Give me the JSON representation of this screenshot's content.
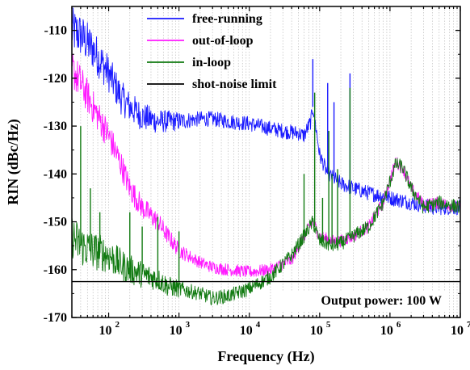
{
  "chart_data": {
    "type": "line",
    "xlabel": "Frequency (Hz)",
    "ylabel": "RIN (dBc/Hz)",
    "xscale": "log",
    "xlim": [
      30,
      10000000
    ],
    "ylim": [
      -170,
      -105
    ],
    "x_ticks": [
      {
        "base": "10",
        "exp": "2",
        "value": 100
      },
      {
        "base": "10",
        "exp": "3",
        "value": 1000
      },
      {
        "base": "10",
        "exp": "4",
        "value": 10000
      },
      {
        "base": "10",
        "exp": "5",
        "value": 100000
      },
      {
        "base": "10",
        "exp": "6",
        "value": 1000000
      },
      {
        "base": "10",
        "exp": "7",
        "value": 10000000
      }
    ],
    "y_ticks": [
      "-110",
      "-120",
      "-130",
      "-140",
      "-150",
      "-160",
      "-170"
    ],
    "grid": "vertical minor dotted",
    "legend_position": "top-center",
    "annotation": "Output power: 100 W",
    "series": [
      {
        "name": "free-running",
        "color": "#1a1aff",
        "x": [
          30,
          40,
          60,
          100,
          150,
          200,
          300,
          500,
          700,
          1000,
          2000,
          3000,
          5000,
          10000,
          20000,
          30000,
          50000,
          60000,
          75000,
          80000,
          90000,
          100000,
          130000,
          200000,
          300000,
          500000,
          1000000,
          2000000,
          4000000,
          10000000
        ],
        "y": [
          -110,
          -111,
          -114,
          -119,
          -124,
          -126,
          -128,
          -129,
          -129,
          -129,
          -128.5,
          -128.5,
          -129,
          -129.5,
          -130.5,
          -131,
          -131.5,
          -132,
          -129,
          -126,
          -131,
          -136,
          -140,
          -142,
          -143,
          -144,
          -145,
          -146,
          -147,
          -147
        ],
        "spikes": [
          {
            "x": 80000,
            "y": -116
          },
          {
            "x": 130000,
            "y": -121
          },
          {
            "x": 160000,
            "y": -125
          },
          {
            "x": 270000,
            "y": -119
          }
        ]
      },
      {
        "name": "out-of-loop",
        "color": "#ff1aff",
        "x": [
          30,
          40,
          60,
          100,
          150,
          200,
          300,
          500,
          700,
          1000,
          2000,
          3000,
          5000,
          10000,
          20000,
          40000,
          60000,
          80000,
          100000,
          150000,
          200000,
          300000,
          500000,
          800000,
          1200000,
          1500000,
          2000000,
          3000000,
          5000000,
          10000000
        ],
        "y": [
          -118,
          -121,
          -126,
          -132,
          -138,
          -143,
          -147,
          -150,
          -153,
          -156,
          -158.5,
          -159.5,
          -160,
          -160.5,
          -160,
          -158,
          -153,
          -150,
          -153,
          -154,
          -154,
          -153,
          -151,
          -146,
          -137.5,
          -138.5,
          -143,
          -146.5,
          -146,
          -147
        ],
        "spikes": []
      },
      {
        "name": "in-loop",
        "color": "#117a11",
        "x": [
          30,
          40,
          60,
          100,
          150,
          200,
          300,
          500,
          700,
          1000,
          2000,
          3000,
          5000,
          10000,
          20000,
          40000,
          60000,
          80000,
          100000,
          150000,
          200000,
          300000,
          500000,
          800000,
          1200000,
          1500000,
          2000000,
          3000000,
          5000000,
          10000000
        ],
        "y": [
          -153,
          -155,
          -156,
          -157,
          -159,
          -160,
          -161,
          -162,
          -163.5,
          -164,
          -165,
          -166,
          -165.5,
          -164,
          -161.5,
          -157,
          -153,
          -150,
          -154,
          -155,
          -154.5,
          -153,
          -151,
          -146,
          -138,
          -138.5,
          -143,
          -147,
          -146,
          -147
        ],
        "spikes": [
          {
            "x": 40,
            "y": -130
          },
          {
            "x": 55,
            "y": -143
          },
          {
            "x": 75,
            "y": -148
          },
          {
            "x": 200,
            "y": -148
          },
          {
            "x": 300,
            "y": -151
          },
          {
            "x": 500,
            "y": -149
          },
          {
            "x": 1000,
            "y": -152
          },
          {
            "x": 60000,
            "y": -140
          },
          {
            "x": 85000,
            "y": -123
          },
          {
            "x": 110000,
            "y": -145
          },
          {
            "x": 135000,
            "y": -131
          },
          {
            "x": 150000,
            "y": -140
          },
          {
            "x": 180000,
            "y": -139
          },
          {
            "x": 270000,
            "y": -122
          }
        ]
      },
      {
        "name": "shot-noise limit",
        "color": "#000000",
        "x": [
          30,
          10000000
        ],
        "y": [
          -162.5,
          -162.5
        ],
        "spikes": []
      }
    ]
  }
}
